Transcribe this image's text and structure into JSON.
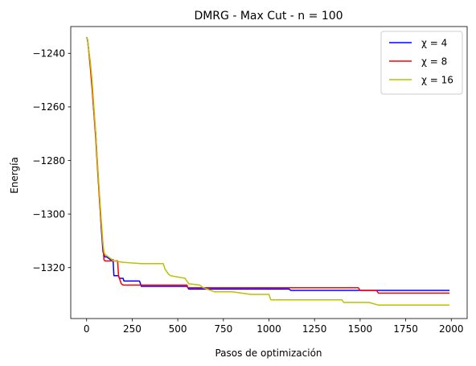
{
  "chart_data": {
    "type": "line",
    "title": "DMRG - Max Cut - n = 100",
    "xlabel": "Pasos de optimización",
    "ylabel": "Energía",
    "xlim": [
      -87,
      2087
    ],
    "ylim": [
      -1339,
      -1230
    ],
    "xticks": [
      0,
      250,
      500,
      750,
      1000,
      1250,
      1500,
      1750,
      2000
    ],
    "xtick_labels": [
      "0",
      "250",
      "500",
      "750",
      "1000",
      "1250",
      "1500",
      "1750",
      "2000"
    ],
    "yticks": [
      -1240,
      -1260,
      -1280,
      -1300,
      -1320
    ],
    "ytick_labels": [
      "−1240",
      "−1260",
      "−1280",
      "−1300",
      "−1320"
    ],
    "grid": false,
    "legend_position": "top-right",
    "series": [
      {
        "name": "χ = 4",
        "color": "#0000ff",
        "x": [
          0,
          5,
          10,
          20,
          30,
          40,
          50,
          60,
          70,
          80,
          90,
          100,
          110,
          130,
          145,
          150,
          155,
          175,
          180,
          200,
          205,
          240,
          245,
          290,
          300,
          550,
          560,
          1110,
          1120,
          1990
        ],
        "y": [
          -1234,
          -1235,
          -1238,
          -1244,
          -1252,
          -1262,
          -1270,
          -1282,
          -1293,
          -1305,
          -1314,
          -1316,
          -1316,
          -1317,
          -1317,
          -1323,
          -1323,
          -1323,
          -1324,
          -1324,
          -1325,
          -1325,
          -1325,
          -1325,
          -1327,
          -1327,
          -1328,
          -1328,
          -1328.5,
          -1328.5
        ]
      },
      {
        "name": "χ = 8",
        "color": "#ff0000",
        "x": [
          0,
          5,
          10,
          20,
          30,
          40,
          50,
          60,
          70,
          80,
          90,
          95,
          100,
          170,
          175,
          190,
          200,
          290,
          300,
          550,
          555,
          1490,
          1500,
          1590,
          1600,
          1990
        ],
        "y": [
          -1234,
          -1235,
          -1238,
          -1245,
          -1253,
          -1262,
          -1272,
          -1283,
          -1294,
          -1304,
          -1312,
          -1317,
          -1317.5,
          -1317.5,
          -1323,
          -1326,
          -1326.5,
          -1326.5,
          -1326.5,
          -1326.5,
          -1327.5,
          -1327.5,
          -1328.5,
          -1328.5,
          -1329.5,
          -1329.5
        ]
      },
      {
        "name": "χ = 16",
        "color": "#bfbf00",
        "x": [
          0,
          5,
          10,
          20,
          30,
          40,
          50,
          60,
          70,
          80,
          90,
          95,
          100,
          150,
          200,
          300,
          420,
          430,
          450,
          460,
          500,
          540,
          560,
          620,
          640,
          700,
          800,
          850,
          900,
          1000,
          1010,
          1100,
          1400,
          1410,
          1550,
          1600,
          1990
        ],
        "y": [
          -1234,
          -1235,
          -1238,
          -1243,
          -1250,
          -1260,
          -1270,
          -1281,
          -1292,
          -1302,
          -1311,
          -1314,
          -1315,
          -1317.5,
          -1318,
          -1318.5,
          -1318.5,
          -1320.5,
          -1322.5,
          -1323,
          -1323.5,
          -1324,
          -1326,
          -1326.5,
          -1327.5,
          -1329,
          -1329,
          -1329.5,
          -1330,
          -1330,
          -1332,
          -1332,
          -1332,
          -1333,
          -1333,
          -1334,
          -1334
        ]
      }
    ]
  }
}
